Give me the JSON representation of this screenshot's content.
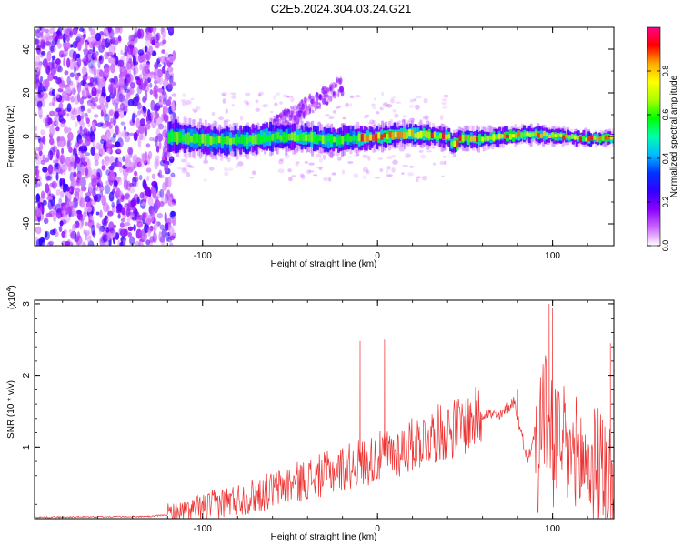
{
  "title": "C2E5.2024.304.03.24.G21",
  "colors": {
    "snr_line": "#ee3333",
    "axis": "#000000",
    "colormap": [
      "#ffffff",
      "#cc66ff",
      "#8800ff",
      "#3300ff",
      "#0033ff",
      "#00bbff",
      "#00ffaa",
      "#00ff00",
      "#aaff00",
      "#ffff00",
      "#ffaa00",
      "#ff0000",
      "#ff0088"
    ]
  },
  "chart_data": [
    {
      "type": "heatmap",
      "name": "spectrogram",
      "title": "C2E5.2024.304.03.24.G21",
      "xlabel": "Height of straight line (km)",
      "ylabel": "Frequency (Hz)",
      "xlim": [
        -196,
        135
      ],
      "ylim": [
        -50,
        50
      ],
      "xticks": [
        -100,
        0,
        100
      ],
      "xtick_labels": [
        "-100",
        "0",
        "100"
      ],
      "yticks": [
        -40,
        -20,
        0,
        20,
        40
      ],
      "ytick_labels": [
        "-40",
        "-20",
        "0",
        "20",
        "40"
      ],
      "colorbar": {
        "label": "Normalized spectral amplitude",
        "range": [
          0,
          1
        ],
        "ticks": [
          0.0,
          0.2,
          0.4,
          0.6,
          0.8
        ],
        "tick_labels": [
          "0.0",
          "0.2",
          "0.4",
          "0.6",
          "0.8"
        ]
      },
      "features": {
        "noise_region_x": [
          -196,
          -120
        ],
        "signal_band_center_hz": 0,
        "signal_band_halfwidth_hz": [
          5,
          2
        ],
        "rising_branch": {
          "x_start": -60,
          "x_end": -20,
          "freq_end_hz": 30
        }
      }
    },
    {
      "type": "line",
      "name": "snr",
      "xlabel": "Height of straight line (km)",
      "ylabel": "SNR (10 * v/v)",
      "multiplier_label": "(x10",
      "multiplier_exp": "4",
      "multiplier_close": ")",
      "xlim": [
        -196,
        135
      ],
      "ylim": [
        0,
        3.05
      ],
      "xticks": [
        -100,
        0,
        100
      ],
      "xtick_labels": [
        "-100",
        "0",
        "100"
      ],
      "yticks": [
        1,
        2,
        3
      ],
      "ytick_labels": [
        "1",
        "2",
        "3"
      ],
      "trend": [
        {
          "x": -196,
          "y": 0.02
        },
        {
          "x": -130,
          "y": 0.03
        },
        {
          "x": -110,
          "y": 0.08
        },
        {
          "x": -90,
          "y": 0.22
        },
        {
          "x": -70,
          "y": 0.32
        },
        {
          "x": -50,
          "y": 0.48
        },
        {
          "x": -30,
          "y": 0.62
        },
        {
          "x": -10,
          "y": 0.78
        },
        {
          "x": 10,
          "y": 0.92
        },
        {
          "x": 30,
          "y": 1.15
        },
        {
          "x": 50,
          "y": 1.32
        },
        {
          "x": 62,
          "y": 1.48
        },
        {
          "x": 70,
          "y": 1.42
        },
        {
          "x": 78,
          "y": 1.65
        },
        {
          "x": 82,
          "y": 1.2
        },
        {
          "x": 86,
          "y": 0.82
        },
        {
          "x": 90,
          "y": 1.25
        },
        {
          "x": 95,
          "y": 1.5
        },
        {
          "x": 105,
          "y": 1.0
        },
        {
          "x": 120,
          "y": 0.75
        },
        {
          "x": 135,
          "y": 0.6
        }
      ],
      "peaks": [
        {
          "x": -10,
          "y": 2.48
        },
        {
          "x": 4,
          "y": 2.5
        },
        {
          "x": 80,
          "y": 1.8
        },
        {
          "x": 98,
          "y": 3.0
        },
        {
          "x": 100,
          "y": 2.95
        },
        {
          "x": 133,
          "y": 2.45
        }
      ]
    }
  ]
}
